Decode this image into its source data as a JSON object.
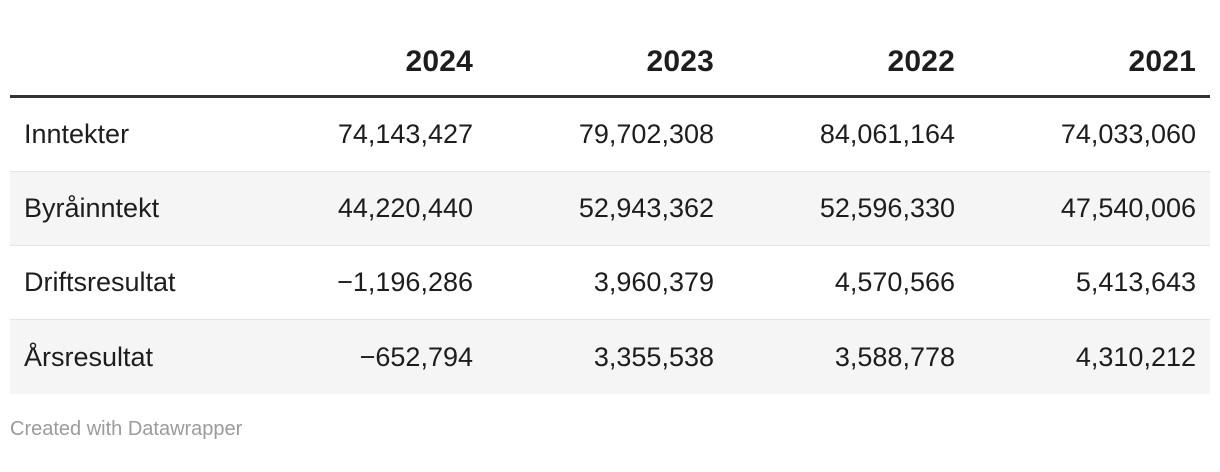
{
  "table": {
    "columns": [
      "",
      "2024",
      "2023",
      "2022",
      "2021"
    ],
    "rows": [
      {
        "label": "Inntekter",
        "values": [
          "74,143,427",
          "79,702,308",
          "84,061,164",
          "74,033,060"
        ]
      },
      {
        "label": "Byråinntekt",
        "values": [
          "44,220,440",
          "52,943,362",
          "52,596,330",
          "47,540,006"
        ]
      },
      {
        "label": "Driftsresultat",
        "values": [
          "−1,196,286",
          "3,960,379",
          "4,570,566",
          "5,413,643"
        ]
      },
      {
        "label": "Årsresultat",
        "values": [
          "−652,794",
          "3,355,538",
          "3,588,778",
          "4,310,212"
        ]
      }
    ]
  },
  "footer": {
    "attribution": "Created with Datawrapper"
  },
  "colors": {
    "text": "#1d1d1d",
    "header_rule": "#333333",
    "row_stripe": "#f5f5f5",
    "row_border": "#e4e4e4",
    "footer_text": "#9b9b9b",
    "background": "#ffffff"
  },
  "chart_data": {
    "type": "table",
    "title": "",
    "columns": [
      "",
      "2024",
      "2023",
      "2022",
      "2021"
    ],
    "row_labels": [
      "Inntekter",
      "Byråinntekt",
      "Driftsresultat",
      "Årsresultat"
    ],
    "series": [
      {
        "name": "Inntekter",
        "values": [
          74143427,
          79702308,
          84061164,
          74033060
        ]
      },
      {
        "name": "Byråinntekt",
        "values": [
          44220440,
          52943362,
          52596330,
          47540006
        ]
      },
      {
        "name": "Driftsresultat",
        "values": [
          -1196286,
          3960379,
          4570566,
          5413643
        ]
      },
      {
        "name": "Årsresultat",
        "values": [
          -652794,
          3355538,
          3588778,
          4310212
        ]
      }
    ],
    "layout": {
      "zebra_striping": true,
      "number_alignment": "right",
      "attribution": "Created with Datawrapper"
    }
  }
}
